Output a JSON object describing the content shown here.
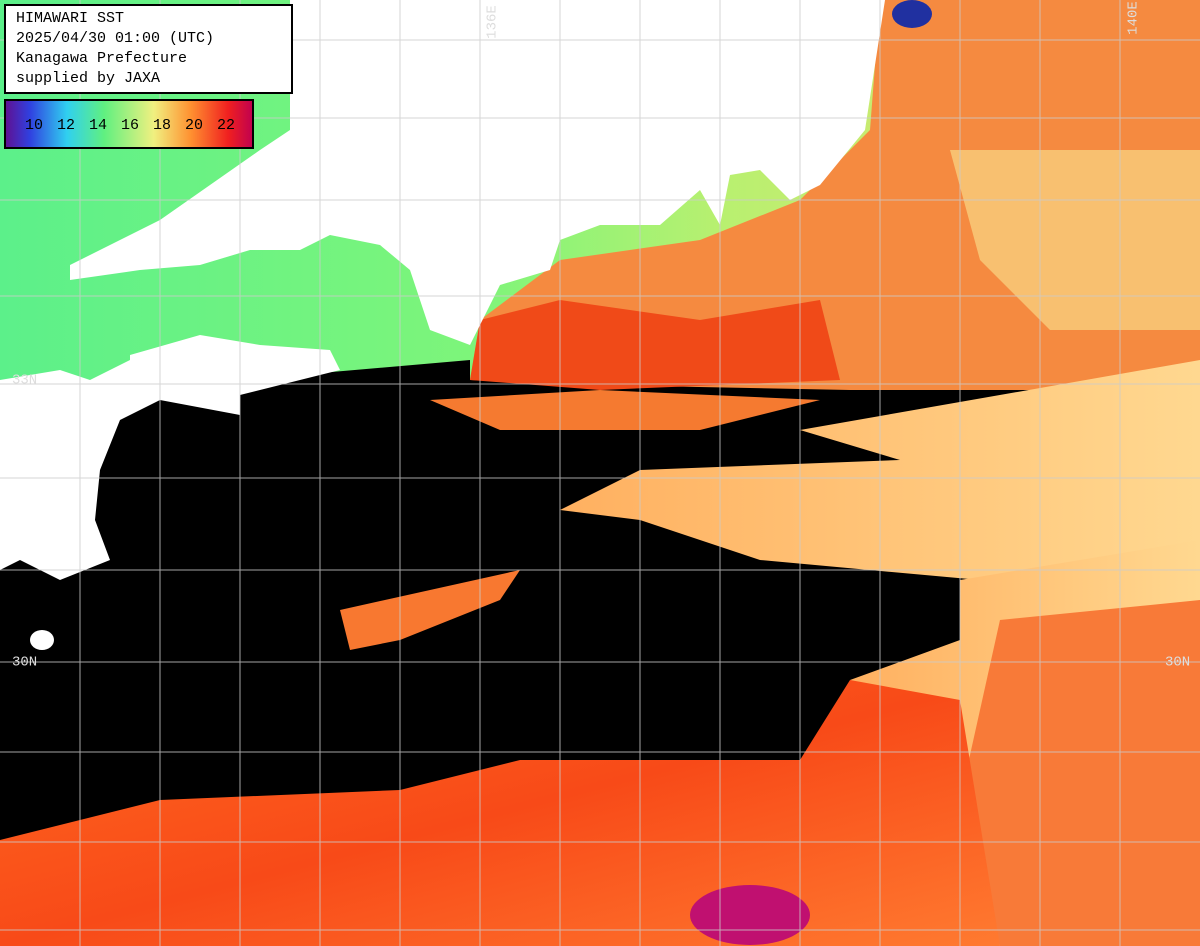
{
  "header": {
    "lines": [
      "HIMAWARI SST",
      "2025/04/30 01:00 (UTC)",
      "Kanagawa Prefecture",
      "supplied by JAXA"
    ]
  },
  "legend": {
    "labels": [
      "10",
      "12",
      "14",
      "16",
      "18",
      "20",
      "22"
    ]
  },
  "grid_labels": {
    "lon": [
      "136E",
      "140E"
    ],
    "lat": [
      "33N",
      "30N",
      "30N"
    ]
  }
}
